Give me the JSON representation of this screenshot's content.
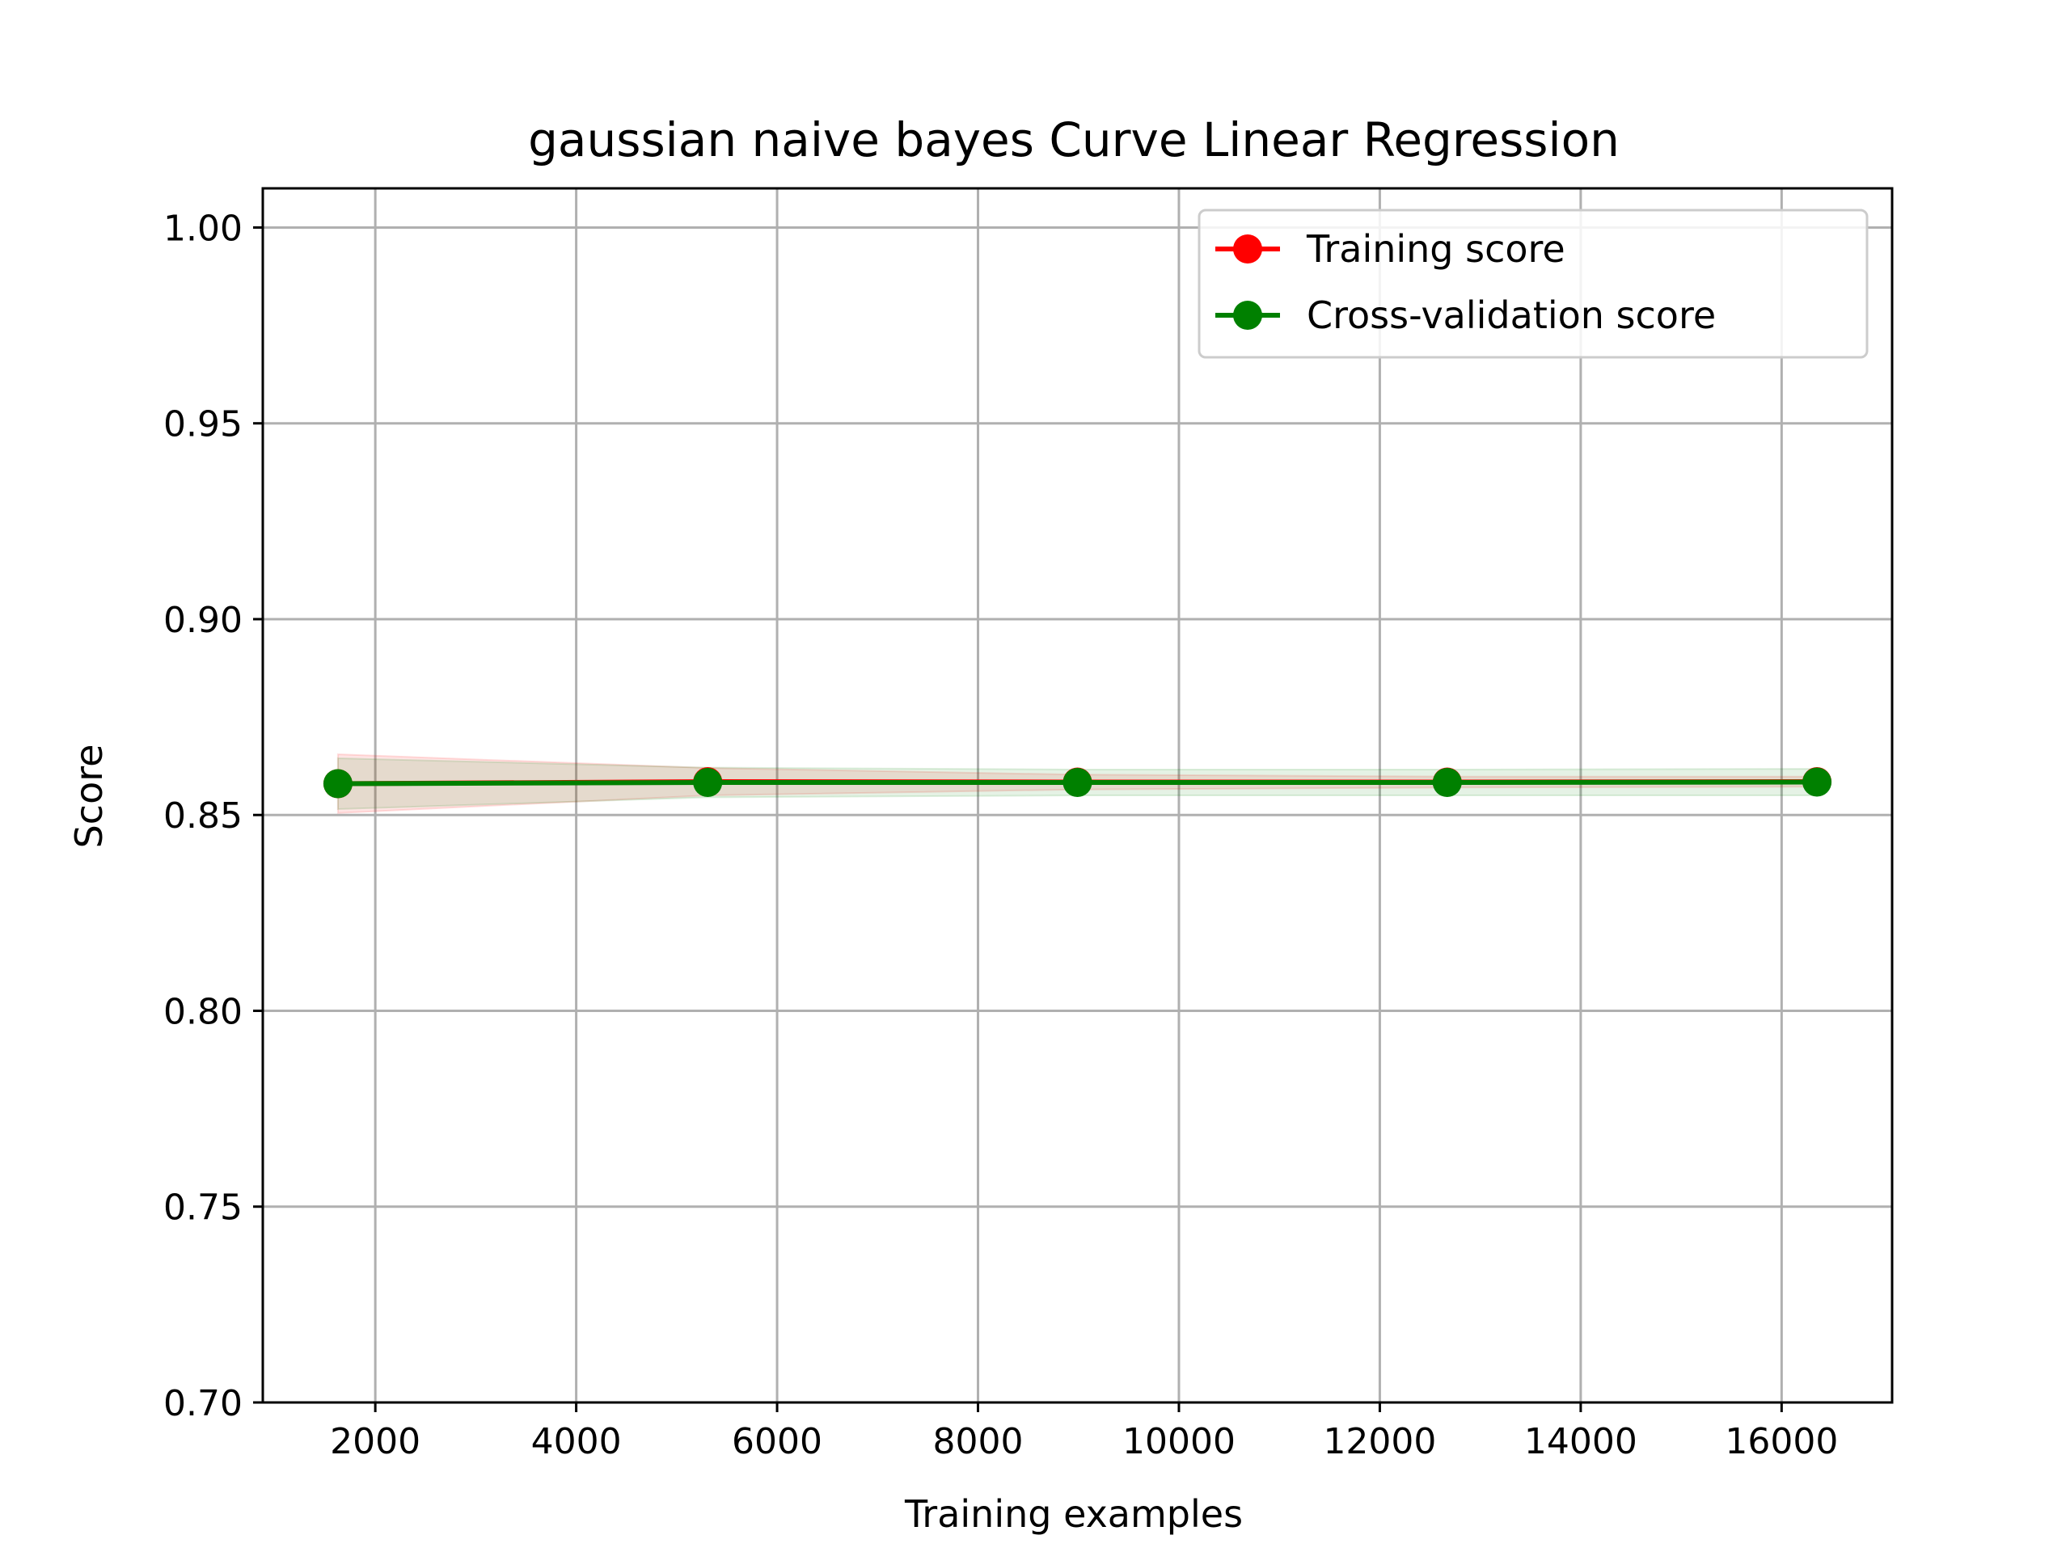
{
  "chart_data": {
    "type": "line",
    "title": "gaussian naive bayes Curve Linear Regression",
    "xlabel": "Training examples",
    "ylabel": "Score",
    "xlim": [
      880,
      17100
    ],
    "ylim": [
      0.7,
      1.01
    ],
    "xticks": [
      2000,
      4000,
      6000,
      8000,
      10000,
      12000,
      14000,
      16000
    ],
    "xtick_labels": [
      "2000",
      "4000",
      "6000",
      "8000",
      "10000",
      "12000",
      "14000",
      "16000"
    ],
    "yticks": [
      0.7,
      0.75,
      0.8,
      0.85,
      0.9,
      0.95,
      1.0
    ],
    "ytick_labels": [
      "0.70",
      "0.75",
      "0.80",
      "0.85",
      "0.90",
      "0.95",
      "1.00"
    ],
    "grid": true,
    "legend_position": "top-right",
    "x": [
      1628,
      5309,
      8990,
      12671,
      16352
    ],
    "series": [
      {
        "name": "Training score",
        "color": "#ff0000",
        "marker": "circle",
        "values": [
          0.858,
          0.8585,
          0.8584,
          0.8584,
          0.8585
        ],
        "band_lower": [
          0.8505,
          0.855,
          0.8565,
          0.857,
          0.8572
        ],
        "band_upper": [
          0.8655,
          0.862,
          0.8603,
          0.8598,
          0.8598
        ]
      },
      {
        "name": "Cross-validation score",
        "color": "#008000",
        "marker": "circle",
        "values": [
          0.858,
          0.8583,
          0.8583,
          0.8583,
          0.8584
        ],
        "band_lower": [
          0.8515,
          0.8545,
          0.855,
          0.855,
          0.855
        ],
        "band_upper": [
          0.8645,
          0.8621,
          0.8616,
          0.8616,
          0.8618
        ]
      }
    ]
  }
}
